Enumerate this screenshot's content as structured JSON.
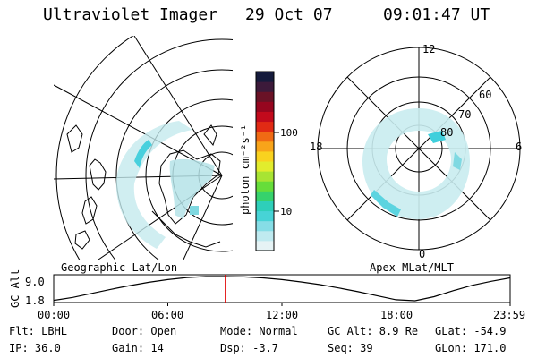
{
  "header": {
    "instrument": "Ultraviolet Imager",
    "date": "29 Oct 07",
    "time": "09:01:47 UT"
  },
  "colorbar": {
    "unit_label": "photon cm⁻²s⁻¹",
    "ticks": [
      "100",
      "10"
    ],
    "colors": [
      "#e6f3f5",
      "#bfeaf0",
      "#86dde6",
      "#47d3d6",
      "#2ecfb9",
      "#36d26c",
      "#66dd3a",
      "#a8e433",
      "#e2ec2d",
      "#f9d21f",
      "#f8a41a",
      "#f06a14",
      "#e12a14",
      "#c20a1c",
      "#96061f",
      "#6a1226",
      "#3c1a3a",
      "#151b3c"
    ]
  },
  "panels": {
    "left_label": "Geographic Lat/Lon",
    "right_label": "Apex MLat/MLT",
    "polar": {
      "mlt_labels": [
        "12",
        "18",
        "6",
        "0"
      ],
      "lat_labels": [
        "60",
        "70",
        "80"
      ]
    }
  },
  "chart_data": {
    "type": "line",
    "ylabel": "GC Alt",
    "yticks": [
      "9.0",
      "1.8"
    ],
    "ylim": [
      1.8,
      9.0
    ],
    "xticks": [
      "00:00",
      "06:00",
      "12:00",
      "18:00",
      "23:59"
    ],
    "x_hours": [
      0,
      1,
      2,
      3,
      4,
      5,
      6,
      7,
      8,
      9,
      10,
      11,
      12,
      13,
      14,
      15,
      16,
      17,
      18,
      19,
      20,
      21,
      22,
      23,
      24
    ],
    "altitude_re": [
      1.9,
      2.8,
      4.0,
      5.2,
      6.3,
      7.3,
      8.1,
      8.7,
      9.0,
      9.0,
      8.9,
      8.6,
      8.1,
      7.4,
      6.6,
      5.6,
      4.5,
      3.3,
      2.1,
      1.8,
      3.0,
      4.8,
      6.4,
      7.6,
      8.6
    ],
    "current_time_hours": 9.03,
    "current_marker_color": "#e00000"
  },
  "footer": {
    "rows": [
      [
        {
          "key": "Flt:",
          "val": "LBHL"
        },
        {
          "key": "Door:",
          "val": "Open"
        },
        {
          "key": "Mode:",
          "val": "Normal"
        },
        {
          "key": "GC Alt:",
          "val": "8.9 Re"
        },
        {
          "key": "GLat:",
          "val": "-54.9"
        }
      ],
      [
        {
          "key": "IP:",
          "val": "36.0"
        },
        {
          "key": "Gain:",
          "val": "14"
        },
        {
          "key": "Dsp:",
          "val": "-3.7"
        },
        {
          "key": "Seq:",
          "val": "39"
        },
        {
          "key": "GLon:",
          "val": "171.0"
        }
      ]
    ]
  }
}
